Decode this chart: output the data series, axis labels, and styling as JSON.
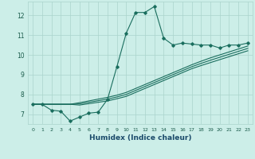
{
  "xlabel": "Humidex (Indice chaleur)",
  "bg_color": "#cceee8",
  "grid_color": "#aad4cc",
  "line_color": "#1a6e5e",
  "xlim": [
    -0.5,
    23.5
  ],
  "ylim": [
    6.5,
    12.7
  ],
  "yticks": [
    7,
    8,
    9,
    10,
    11,
    12
  ],
  "xticks": [
    0,
    1,
    2,
    3,
    4,
    5,
    6,
    7,
    8,
    9,
    10,
    11,
    12,
    13,
    14,
    15,
    16,
    17,
    18,
    19,
    20,
    21,
    22,
    23
  ],
  "curve1_x": [
    0,
    1,
    2,
    3,
    4,
    5,
    6,
    7,
    8,
    9,
    10,
    11,
    12,
    13,
    14,
    15,
    16,
    17,
    18,
    19,
    20,
    21,
    22,
    23
  ],
  "curve1_y": [
    7.5,
    7.5,
    7.2,
    7.15,
    6.65,
    6.85,
    7.05,
    7.1,
    7.75,
    9.4,
    11.1,
    12.15,
    12.15,
    12.45,
    10.85,
    10.5,
    10.6,
    10.55,
    10.5,
    10.5,
    10.35,
    10.5,
    10.5,
    10.6
  ],
  "curve2_x": [
    0,
    1,
    2,
    3,
    4,
    5,
    6,
    7,
    8,
    9,
    10,
    11,
    12,
    13,
    14,
    15,
    16,
    17,
    18,
    19,
    20,
    21,
    22,
    23
  ],
  "curve2_y": [
    7.5,
    7.5,
    7.5,
    7.5,
    7.5,
    7.58,
    7.67,
    7.76,
    7.85,
    7.96,
    8.1,
    8.3,
    8.5,
    8.7,
    8.9,
    9.1,
    9.3,
    9.5,
    9.68,
    9.85,
    10.0,
    10.15,
    10.3,
    10.45
  ],
  "curve3_x": [
    0,
    1,
    2,
    3,
    4,
    5,
    6,
    7,
    8,
    9,
    10,
    11,
    12,
    13,
    14,
    15,
    16,
    17,
    18,
    19,
    20,
    21,
    22,
    23
  ],
  "curve3_y": [
    7.5,
    7.5,
    7.5,
    7.5,
    7.5,
    7.52,
    7.6,
    7.68,
    7.76,
    7.87,
    8.0,
    8.2,
    8.4,
    8.6,
    8.8,
    9.0,
    9.2,
    9.4,
    9.57,
    9.73,
    9.88,
    10.03,
    10.18,
    10.33
  ],
  "curve4_x": [
    0,
    1,
    2,
    3,
    4,
    5,
    6,
    7,
    8,
    9,
    10,
    11,
    12,
    13,
    14,
    15,
    16,
    17,
    18,
    19,
    20,
    21,
    22,
    23
  ],
  "curve4_y": [
    7.5,
    7.5,
    7.5,
    7.5,
    7.5,
    7.46,
    7.53,
    7.6,
    7.67,
    7.78,
    7.9,
    8.1,
    8.3,
    8.5,
    8.7,
    8.9,
    9.1,
    9.3,
    9.46,
    9.61,
    9.76,
    9.91,
    10.06,
    10.21
  ]
}
